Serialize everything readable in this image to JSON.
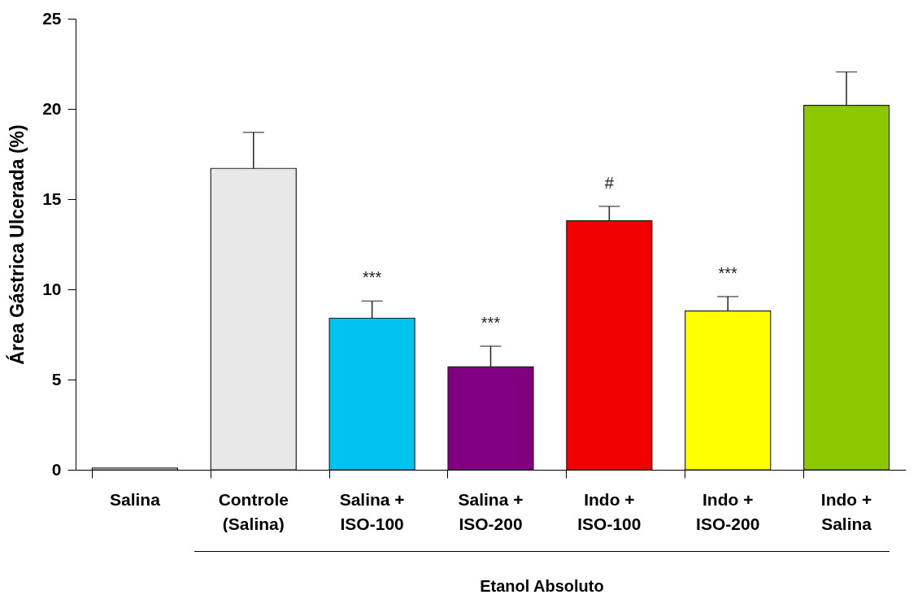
{
  "chart_data": {
    "type": "bar",
    "ylabel": "Área Gástrica Ulcerada (%)",
    "categories": [
      "Salina",
      "Controle\n(Salina)",
      "Salina +\nISO-100",
      "Salina +\nISO-200",
      "Indo  +\nISO-100",
      "Indo  +\nISO-200",
      "Indo  +\nSalina"
    ],
    "values": [
      0.1,
      16.7,
      8.4,
      5.7,
      13.8,
      8.8,
      20.2
    ],
    "errors": [
      null,
      2.0,
      0.95,
      1.15,
      0.8,
      0.8,
      1.85
    ],
    "colors": [
      "#ffffff",
      "#e8e8e8",
      "#00c4f0",
      "#800080",
      "#f00000",
      "#ffff00",
      "#8cc800"
    ],
    "ylim": [
      0,
      25
    ],
    "yticks": [
      0,
      5,
      10,
      15,
      20,
      25
    ],
    "annotations": [
      {
        "text": "***",
        "x": "Salina +\nISO-100",
        "y": 8.4
      },
      {
        "text": "***",
        "x": "Salina +\nISO-200",
        "y": 5.7
      },
      {
        "text": "#",
        "x": "Indo  +\nISO-100",
        "y": 13.8
      },
      {
        "text": "***",
        "x": "Indo  +\nISO-200",
        "y": 8.8
      },
      "Etanol Absoluto"
    ]
  }
}
